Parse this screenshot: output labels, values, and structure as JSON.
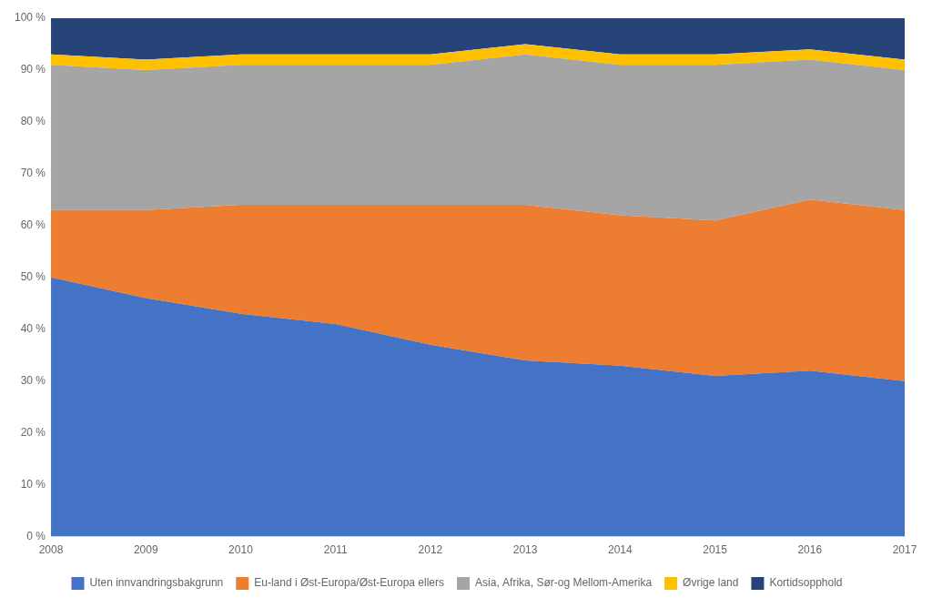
{
  "chart_data": {
    "type": "area",
    "stacked": true,
    "x": [
      2008,
      2009,
      2010,
      2011,
      2012,
      2013,
      2014,
      2015,
      2016,
      2017
    ],
    "series": [
      {
        "name": "Uten innvandringsbakgrunn",
        "color": "#4472C4",
        "values": [
          50,
          46,
          43,
          41,
          37,
          34,
          33,
          31,
          32,
          30
        ]
      },
      {
        "name": "Eu-land i Øst-Europa/Øst-Europa ellers",
        "color": "#ED7D31",
        "values": [
          13,
          17,
          21,
          23,
          27,
          30,
          29,
          30,
          33,
          33
        ]
      },
      {
        "name": "Asia, Afrika, Sør-og Mellom-Amerika",
        "color": "#A5A5A5",
        "values": [
          28,
          27,
          27,
          27,
          27,
          29,
          29,
          30,
          27,
          27
        ]
      },
      {
        "name": "Øvrige land",
        "color": "#FFC000",
        "values": [
          2,
          2,
          2,
          2,
          2,
          2,
          2,
          2,
          2,
          2
        ]
      },
      {
        "name": "Kortidsopphold",
        "color": "#264478",
        "values": [
          7,
          8,
          7,
          7,
          7,
          5,
          7,
          7,
          6,
          8
        ]
      }
    ],
    "xlim": [
      2008,
      2017
    ],
    "xticks": [
      2008,
      2009,
      2010,
      2011,
      2012,
      2013,
      2014,
      2015,
      2016,
      2017
    ],
    "ylim": [
      0,
      100
    ],
    "yticks": [
      {
        "value": 0,
        "label": "0 %"
      },
      {
        "value": 10,
        "label": "10 %"
      },
      {
        "value": 20,
        "label": "20 %"
      },
      {
        "value": 30,
        "label": "30 %"
      },
      {
        "value": 40,
        "label": "40 %"
      },
      {
        "value": 50,
        "label": "50 %"
      },
      {
        "value": 60,
        "label": "60 %"
      },
      {
        "value": 70,
        "label": "70 %"
      },
      {
        "value": 80,
        "label": "80 %"
      },
      {
        "value": 90,
        "label": "90 %"
      },
      {
        "value": 100,
        "label": "100 %"
      }
    ],
    "grid": false,
    "legend": "bottom"
  }
}
